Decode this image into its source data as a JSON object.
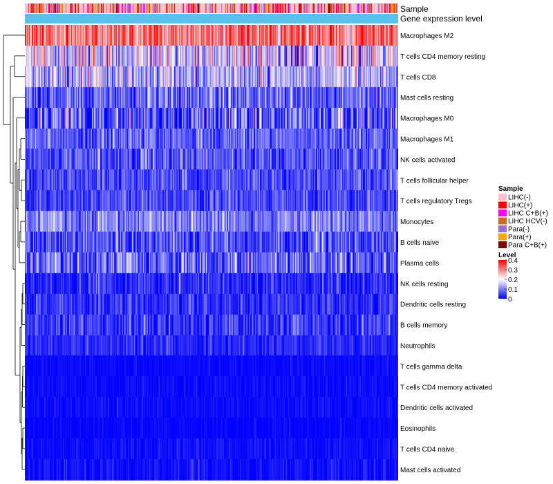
{
  "chart_data": {
    "type": "heatmap",
    "title": "",
    "annotation_tracks": [
      "Sample",
      "Gene expression level"
    ],
    "rows": [
      {
        "label": "Macrophages M2",
        "mean": 0.31,
        "spread": 0.07
      },
      {
        "label": "T cells CD4 memory resting",
        "mean": 0.17,
        "spread": 0.09
      },
      {
        "label": "T cells CD8",
        "mean": 0.14,
        "spread": 0.07
      },
      {
        "label": "Mast cells resting",
        "mean": 0.075,
        "spread": 0.06
      },
      {
        "label": "Macrophages M0",
        "mean": 0.065,
        "spread": 0.08
      },
      {
        "label": "Macrophages M1",
        "mean": 0.075,
        "spread": 0.045
      },
      {
        "label": "NK cells activated",
        "mean": 0.065,
        "spread": 0.05
      },
      {
        "label": "T cells follicular helper",
        "mean": 0.06,
        "spread": 0.04
      },
      {
        "label": "T cells regulatory  Tregs",
        "mean": 0.05,
        "spread": 0.04
      },
      {
        "label": "Monocytes",
        "mean": 0.1,
        "spread": 0.05
      },
      {
        "label": "B cells naive",
        "mean": 0.055,
        "spread": 0.05
      },
      {
        "label": "Plasma cells",
        "mean": 0.07,
        "spread": 0.07
      },
      {
        "label": "NK cells resting",
        "mean": 0.03,
        "spread": 0.035
      },
      {
        "label": "Dendritic cells resting",
        "mean": 0.035,
        "spread": 0.035
      },
      {
        "label": "B cells memory",
        "mean": 0.04,
        "spread": 0.04
      },
      {
        "label": "Neutrophils",
        "mean": 0.03,
        "spread": 0.025
      },
      {
        "label": "T cells gamma delta",
        "mean": 0.008,
        "spread": 0.01
      },
      {
        "label": "T cells CD4 memory activated",
        "mean": 0.008,
        "spread": 0.012
      },
      {
        "label": "Dendritic cells activated",
        "mean": 0.008,
        "spread": 0.012
      },
      {
        "label": "Eosinophils",
        "mean": 0.004,
        "spread": 0.008
      },
      {
        "label": "T cells CD4 naive",
        "mean": 0.01,
        "spread": 0.015
      },
      {
        "label": "Mast cells activated",
        "mean": 0.01,
        "spread": 0.02
      }
    ],
    "sample_legend": {
      "title": "Sample",
      "items": [
        {
          "label": "LIHC(-)",
          "color": "#ffc0cb",
          "weight": 0.5
        },
        {
          "label": "LIHC(+)",
          "color": "#ff0000",
          "weight": 0.17
        },
        {
          "label": "LIHC C+B(+)",
          "color": "#ff00ff",
          "weight": 0.08
        },
        {
          "label": "LIHC HCV(-)",
          "color": "#d2691e",
          "weight": 0.07
        },
        {
          "label": "Para(-)",
          "color": "#9370db",
          "weight": 0.1
        },
        {
          "label": "Para(+)",
          "color": "#ffa500",
          "weight": 0.06
        },
        {
          "label": "Para C+B(+)",
          "color": "#800000",
          "weight": 0.02
        }
      ]
    },
    "level_legend": {
      "title": "Level",
      "ticks": [
        "0.4",
        "0.3",
        "0.2",
        "0.1",
        "0"
      ],
      "tick_values": [
        0.4,
        0.3,
        0.2,
        0.1,
        0
      ],
      "range": [
        0,
        0.4
      ],
      "colors": {
        "low": "#0000ff",
        "mid": "#ffffff",
        "high": "#ff0000",
        "mid_value": 0.2
      }
    },
    "gene_expression_color": "#5bc0eb",
    "n_samples": 480,
    "seed": 12345
  }
}
